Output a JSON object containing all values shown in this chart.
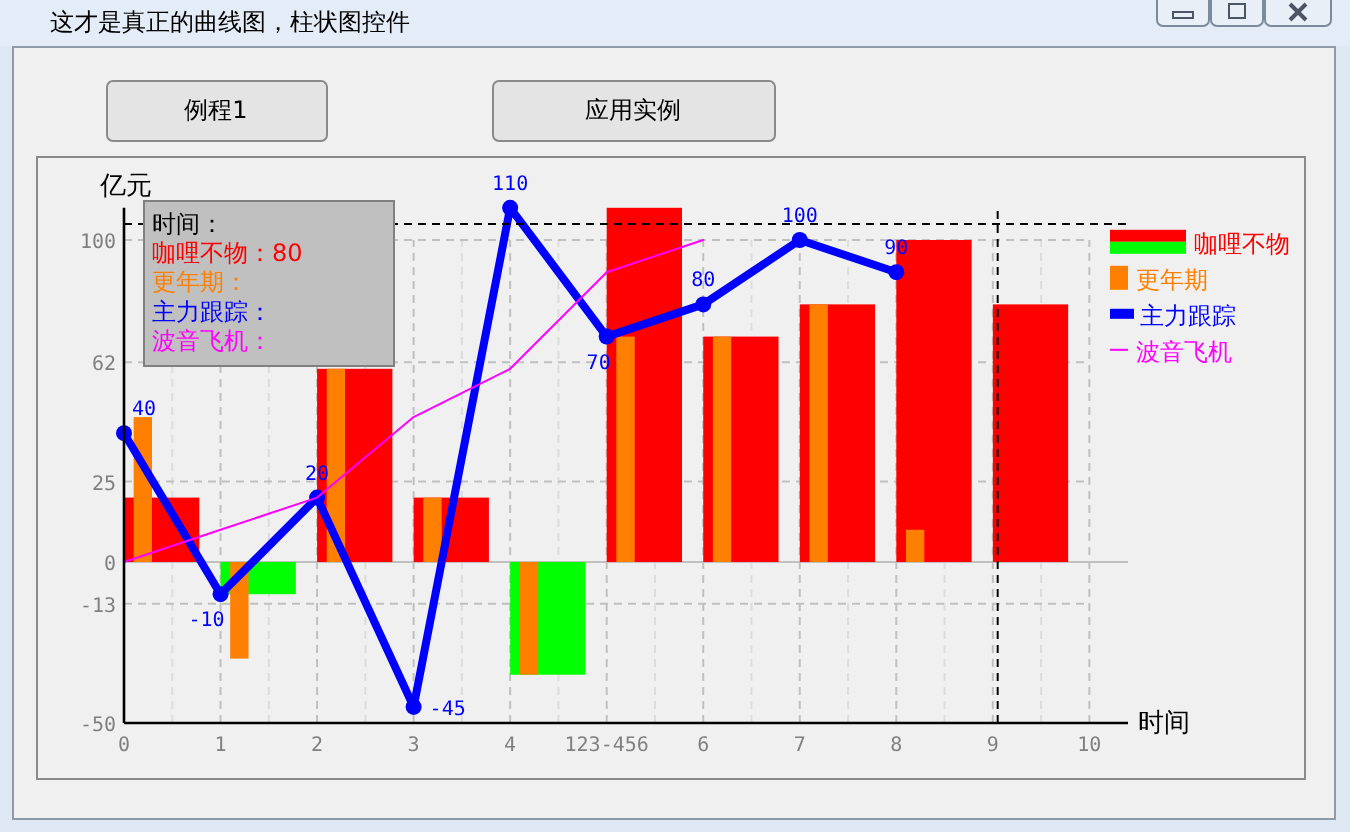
{
  "chart_data": {
    "type": "bar",
    "title": "这才是真正的曲线图，柱状图控件",
    "xlabel": "时间",
    "ylabel": "亿元",
    "x": [
      0,
      1,
      2,
      3,
      4,
      5,
      6,
      7,
      8,
      9
    ],
    "xlim": [
      0,
      10.4
    ],
    "xticks": [
      0,
      {
        "value": 0.5,
        "label": null
      },
      1,
      {
        "value": 1.5,
        "label": null
      },
      2,
      {
        "value": 2.5,
        "label": null
      },
      3,
      {
        "value": 3.5,
        "label": null
      },
      4,
      {
        "value": 4.5,
        "label": null
      },
      {
        "value": 5,
        "label": "123-456"
      },
      {
        "value": 5.5,
        "label": null
      },
      6,
      {
        "value": 6.5,
        "label": null
      },
      7,
      {
        "value": 7.5,
        "label": null
      },
      8,
      {
        "value": 8.5,
        "label": null
      },
      9,
      {
        "value": 9.5,
        "label": null
      },
      10
    ],
    "ylim": [
      -50,
      110
    ],
    "yticks": [
      -50,
      -13,
      0,
      25,
      62,
      100
    ],
    "grid": true,
    "legend": "top right",
    "series": [
      {
        "name": "咖哩不物",
        "color": "#ff0000",
        "colors": [
          "#ff0000",
          "#00ff00",
          "#ff0000",
          "#ff0000",
          "#00ff00",
          "#ff0000",
          "#ff0000",
          "#ff0000",
          "#ff0000",
          "#ff0000"
        ],
        "values": [
          20,
          -10,
          60,
          20,
          -35,
          110,
          70,
          80,
          100,
          80
        ]
      },
      {
        "name": "更年期",
        "color": "#ff8000",
        "values": [
          45,
          -30,
          60,
          20,
          -35,
          70,
          70,
          80,
          10,
          null
        ]
      },
      {
        "name": "主力跟踪",
        "type": "line",
        "color": "#0000ff",
        "marker": "circle",
        "values": [
          40,
          -10,
          20,
          -45,
          110,
          70,
          80,
          100,
          90,
          null
        ],
        "value_labels": [
          "40",
          "-10",
          "20",
          "-45",
          "110",
          "70",
          "80",
          "100",
          "90",
          null
        ]
      },
      {
        "name": "波音飞机",
        "type": "line",
        "color": "#ff00ff",
        "values": [
          0,
          10,
          20,
          45,
          60,
          90,
          100,
          null,
          null,
          null
        ]
      }
    ],
    "ref_lines": [
      {
        "axis": "y",
        "value": 0,
        "color": "#c0c0c0",
        "line_style": "solid"
      },
      {
        "axis": "x",
        "value": 9.05,
        "color": "#000000",
        "line_style": "dashed"
      },
      {
        "axis": "y",
        "value": 105,
        "color": "#000000",
        "line_style": "dashed"
      }
    ],
    "annotations": [
      "例程1",
      "应用实例",
      "时间：",
      "咖哩不物：80",
      "更年期：",
      "主力跟踪：",
      "波音飞机："
    ]
  }
}
